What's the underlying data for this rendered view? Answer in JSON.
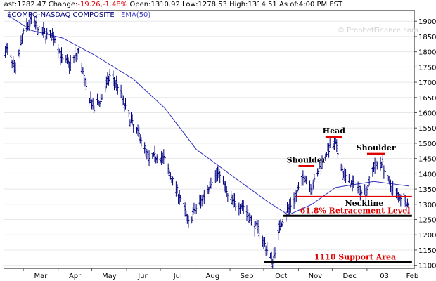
{
  "quote": {
    "last_label": "Last:",
    "last": "1282.47",
    "change_label": "Change:",
    "change": "-19.26,-1.48%",
    "open_label": "Open:",
    "open": "1310.92",
    "low_label": "Low:",
    "low": "1278.53",
    "high_label": "High:",
    "high": "1314.51",
    "asof_label": "As of:",
    "asof": "4:00 PM EST"
  },
  "legend": {
    "symbol": "$COMPQ-NASDAQ COMPOSITE",
    "ema": "EMA(50)"
  },
  "watermark": "© ProphetFinance.com",
  "colors": {
    "price": "#000080",
    "ema": "#3030c0",
    "annotation": "#e00000",
    "support": "#000000",
    "grid": "#e8e8e8",
    "legend_symbol": "#000080",
    "legend_ema": "#4040c0"
  },
  "chart_data": {
    "type": "ohlc",
    "series": [
      {
        "name": "$COMPQ-NASDAQ COMPOSITE",
        "kind": "ohlc"
      },
      {
        "name": "EMA(50)",
        "kind": "line"
      }
    ],
    "ylim": [
      1090,
      1935
    ],
    "y_ticks": [
      1100,
      1150,
      1200,
      1250,
      1300,
      1350,
      1400,
      1450,
      1500,
      1550,
      1600,
      1650,
      1700,
      1750,
      1800,
      1850,
      1900
    ],
    "x_ticks": [
      "Mar",
      "Apr",
      "May",
      "Jun",
      "Jul",
      "Aug",
      "Sep",
      "Oct",
      "Nov",
      "Dec",
      "03",
      "Feb"
    ],
    "price_path": [
      [
        "2002-02-15",
        1805
      ],
      [
        "2002-02-22",
        1730
      ],
      [
        "2002-03-01",
        1860
      ],
      [
        "2002-03-08",
        1905
      ],
      [
        "2002-03-15",
        1870
      ],
      [
        "2002-03-22",
        1855
      ],
      [
        "2002-03-29",
        1845
      ],
      [
        "2002-04-05",
        1770
      ],
      [
        "2002-04-12",
        1760
      ],
      [
        "2002-04-19",
        1800
      ],
      [
        "2002-04-26",
        1680
      ],
      [
        "2002-05-03",
        1610
      ],
      [
        "2002-05-10",
        1650
      ],
      [
        "2002-05-17",
        1720
      ],
      [
        "2002-05-24",
        1690
      ],
      [
        "2002-05-31",
        1615
      ],
      [
        "2002-06-07",
        1555
      ],
      [
        "2002-06-14",
        1515
      ],
      [
        "2002-06-21",
        1445
      ],
      [
        "2002-06-28",
        1460
      ],
      [
        "2002-07-05",
        1445
      ],
      [
        "2002-07-12",
        1375
      ],
      [
        "2002-07-19",
        1320
      ],
      [
        "2002-07-26",
        1240
      ],
      [
        "2002-08-02",
        1285
      ],
      [
        "2002-08-09",
        1330
      ],
      [
        "2002-08-16",
        1380
      ],
      [
        "2002-08-23",
        1405
      ],
      [
        "2002-08-30",
        1325
      ],
      [
        "2002-09-06",
        1300
      ],
      [
        "2002-09-13",
        1295
      ],
      [
        "2002-09-20",
        1245
      ],
      [
        "2002-09-27",
        1215
      ],
      [
        "2002-10-04",
        1150
      ],
      [
        "2002-10-09",
        1115
      ],
      [
        "2002-10-16",
        1235
      ],
      [
        "2002-10-23",
        1285
      ],
      [
        "2002-10-30",
        1330
      ],
      [
        "2002-11-06",
        1395
      ],
      [
        "2002-11-13",
        1355
      ],
      [
        "2002-11-20",
        1420
      ],
      [
        "2002-11-27",
        1480
      ],
      [
        "2002-12-04",
        1495
      ],
      [
        "2002-12-11",
        1400
      ],
      [
        "2002-12-18",
        1365
      ],
      [
        "2002-12-24",
        1355
      ],
      [
        "2002-12-31",
        1340
      ],
      [
        "2003-01-07",
        1425
      ],
      [
        "2003-01-14",
        1440
      ],
      [
        "2003-01-21",
        1365
      ],
      [
        "2003-01-28",
        1330
      ],
      [
        "2003-02-04",
        1320
      ],
      [
        "2003-02-07",
        1285
      ]
    ],
    "ema_path": [
      [
        "2002-02-15",
        1920
      ],
      [
        "2002-03-08",
        1870
      ],
      [
        "2002-04-05",
        1845
      ],
      [
        "2002-05-03",
        1790
      ],
      [
        "2002-06-07",
        1710
      ],
      [
        "2002-07-05",
        1615
      ],
      [
        "2002-08-02",
        1480
      ],
      [
        "2002-09-06",
        1385
      ],
      [
        "2002-10-04",
        1310
      ],
      [
        "2002-10-23",
        1265
      ],
      [
        "2002-11-13",
        1300
      ],
      [
        "2002-12-04",
        1355
      ],
      [
        "2003-01-07",
        1375
      ],
      [
        "2003-02-07",
        1360
      ]
    ],
    "annotations": [
      {
        "label": "Shoulder",
        "level": 1425,
        "start": "2002-11-01",
        "end": "2002-11-15"
      },
      {
        "label": "Head",
        "level": 1520,
        "start": "2002-11-25",
        "end": "2002-12-10"
      },
      {
        "label": "Shoulder",
        "level": 1465,
        "start": "2003-01-01",
        "end": "2003-01-17"
      },
      {
        "label": "Neckline",
        "level": 1325,
        "start": "2002-10-30",
        "end": "2003-02-10"
      },
      {
        "label": "61.8% Retracement Level",
        "level": 1262,
        "start": "2002-10-18",
        "end": "2003-02-10"
      },
      {
        "label": "1110 Support Area",
        "level": 1110,
        "start": "2002-10-01",
        "end": "2003-02-10"
      }
    ]
  }
}
